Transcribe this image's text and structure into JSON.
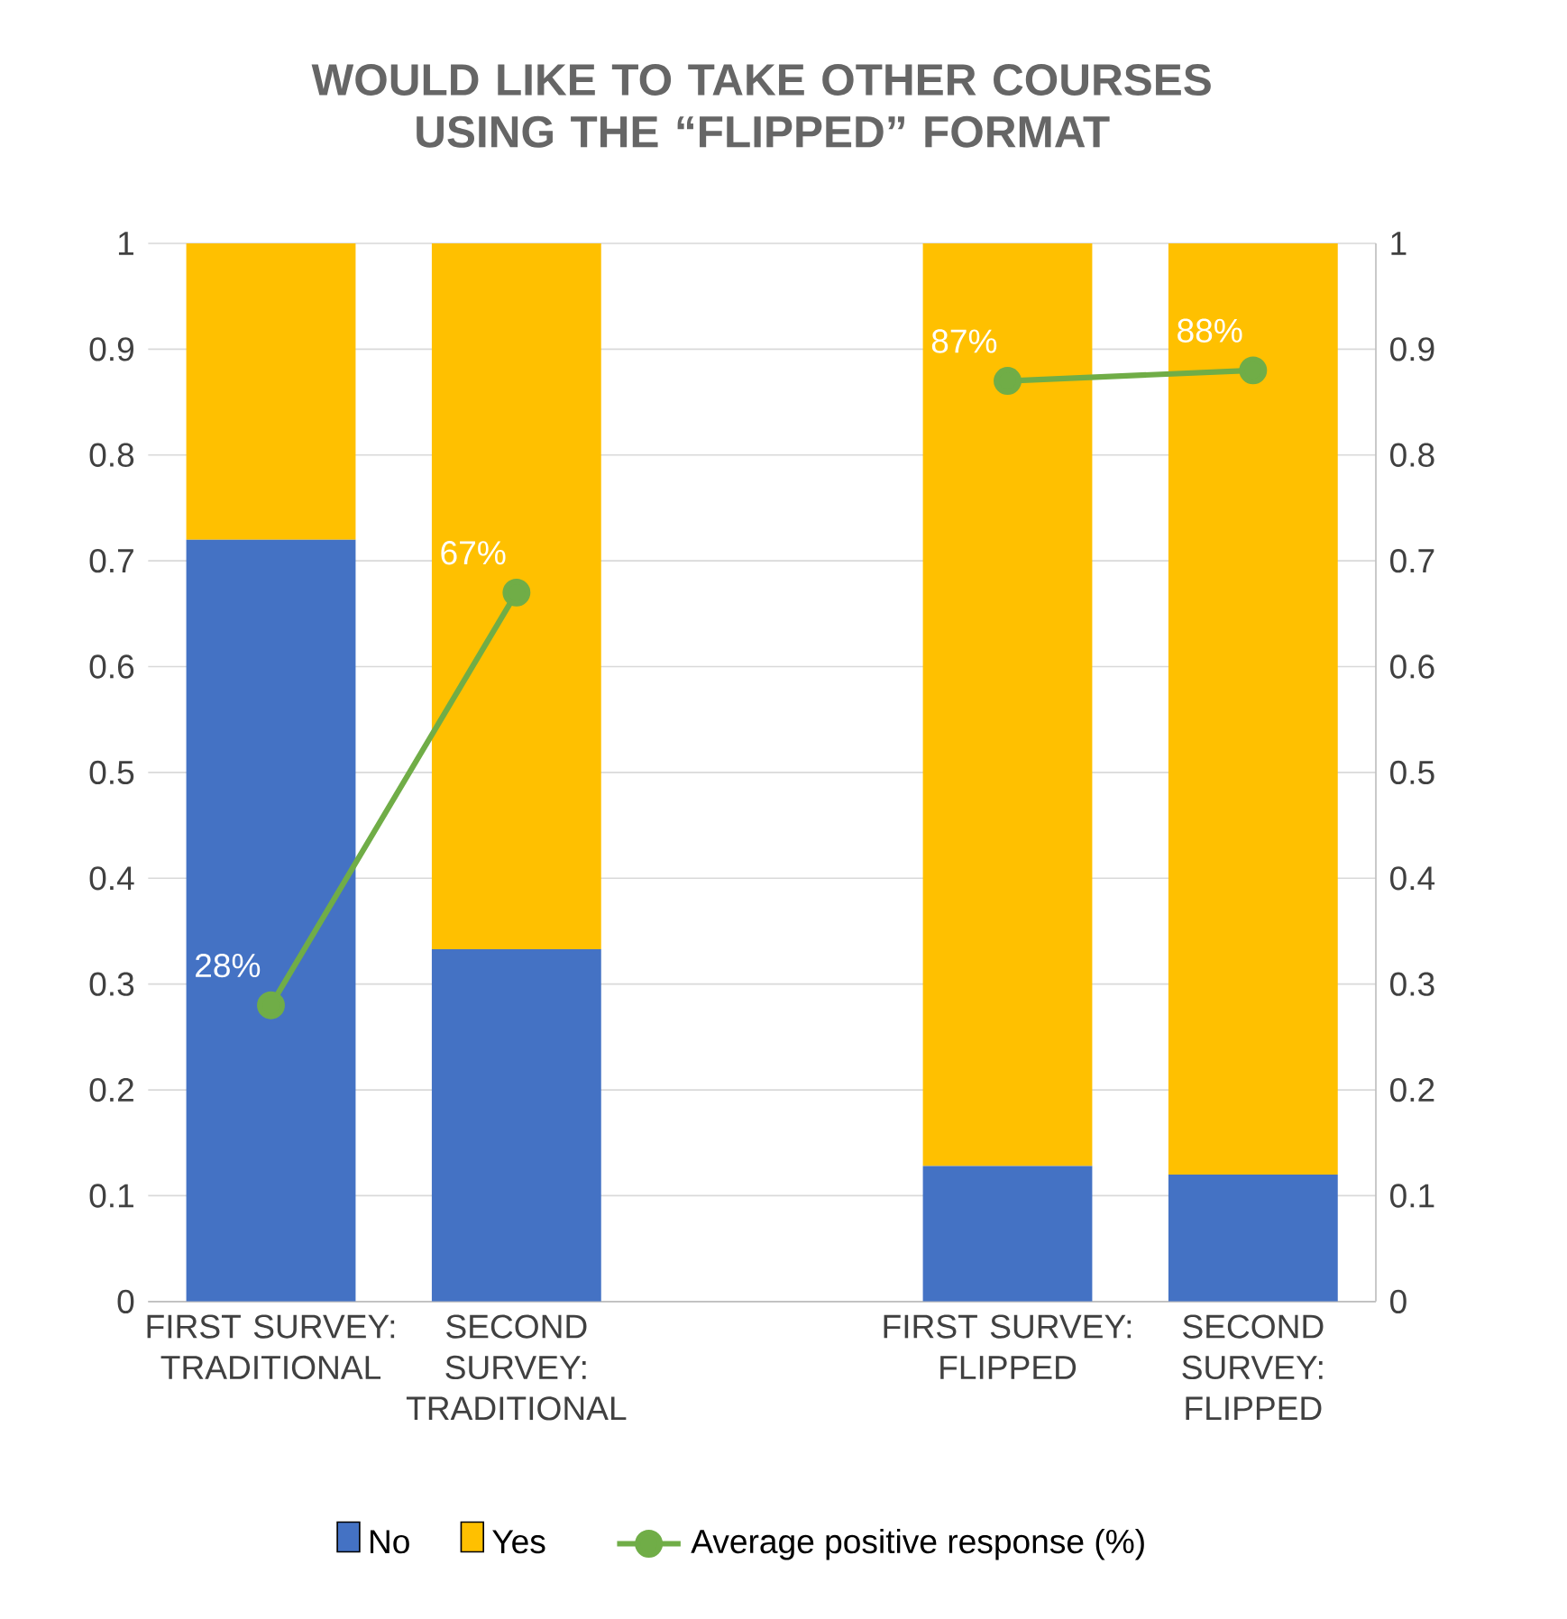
{
  "chart_data": {
    "type": "bar",
    "title": "WOULD LIKE TO TAKE OTHER COURSES USING THE “FLIPPED” FORMAT",
    "categories": [
      "FIRST SURVEY: TRADITIONAL",
      "SECOND SURVEY: TRADITIONAL",
      null,
      "FIRST SURVEY: FLIPPED",
      "SECOND SURVEY: FLIPPED"
    ],
    "stacked": true,
    "series": [
      {
        "name": "No",
        "type": "bar",
        "color": "#4472c4",
        "values": [
          0.72,
          0.333,
          null,
          0.128,
          0.12
        ]
      },
      {
        "name": "Yes",
        "type": "bar",
        "color": "#ffc000",
        "values": [
          0.28,
          0.667,
          null,
          0.872,
          0.88
        ]
      },
      {
        "name": "Average positive response (%)",
        "type": "line",
        "axis": "y2",
        "color": "#70ad47",
        "marker": "circle",
        "values": [
          0.28,
          0.67,
          null,
          0.87,
          0.88
        ],
        "value_labels": [
          "28%",
          "67%",
          null,
          "87%",
          "88%"
        ]
      }
    ],
    "ylim": [
      0,
      1
    ],
    "yticks": [
      0,
      0.1,
      0.2,
      0.3,
      0.4,
      0.5,
      0.6,
      0.7,
      0.8,
      0.9,
      1
    ],
    "y2lim": [
      0,
      1
    ],
    "y2ticks": [
      0,
      0.1,
      0.2,
      0.3,
      0.4,
      0.5,
      0.6,
      0.7,
      0.8,
      0.9,
      1
    ],
    "grid": "y",
    "legend": "bottom"
  }
}
